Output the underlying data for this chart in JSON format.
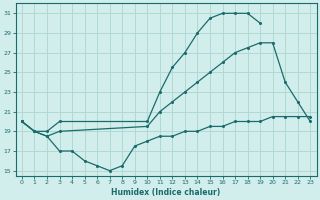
{
  "xlabel": "Humidex (Indice chaleur)",
  "bg_color": "#d1eeec",
  "grid_color": "#b2d8d4",
  "line_color": "#1a6b6b",
  "ylim": [
    14.5,
    32
  ],
  "xlim": [
    -0.5,
    23.5
  ],
  "yticks": [
    15,
    17,
    19,
    21,
    23,
    25,
    27,
    29,
    31
  ],
  "xticks": [
    0,
    1,
    2,
    3,
    4,
    5,
    6,
    7,
    8,
    9,
    10,
    11,
    12,
    13,
    14,
    15,
    16,
    17,
    18,
    19,
    20,
    21,
    22,
    23
  ],
  "line1_x": [
    0,
    1,
    2,
    3,
    10,
    11,
    12,
    13,
    14,
    15,
    16,
    17,
    18,
    19
  ],
  "line1_y": [
    20,
    19,
    19,
    20,
    20,
    23,
    25.5,
    27,
    29,
    30.5,
    31,
    31,
    31,
    30
  ],
  "line2_x": [
    0,
    1,
    2,
    3,
    10,
    11,
    12,
    13,
    14,
    15,
    16,
    17,
    18,
    19,
    20,
    21,
    22,
    23
  ],
  "line2_y": [
    20,
    19,
    18.5,
    19,
    19.5,
    21,
    22,
    23,
    24,
    25,
    26,
    27,
    27.5,
    28,
    28,
    24,
    22,
    20
  ],
  "line3_x": [
    0,
    1,
    2,
    3,
    4,
    5,
    6,
    7,
    8,
    9,
    10,
    11,
    12,
    13,
    14,
    15,
    16,
    17,
    18,
    19,
    20,
    21,
    22,
    23
  ],
  "line3_y": [
    20,
    19,
    18.5,
    17,
    17,
    16,
    15.5,
    15,
    15.5,
    17.5,
    18,
    18.5,
    18.5,
    19,
    19,
    19.5,
    19.5,
    20,
    20,
    20,
    20.5,
    20.5,
    20.5,
    20.5
  ]
}
